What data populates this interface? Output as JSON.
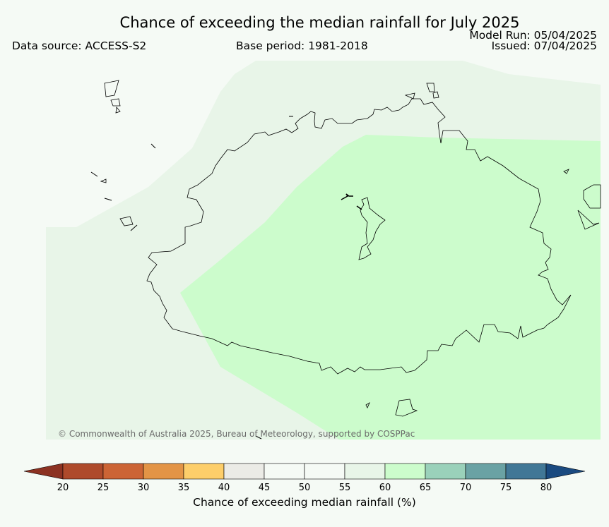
{
  "header": {
    "title": "Chance of exceeding the median rainfall for July 2025",
    "data_source": "Data source: ACCESS-S2",
    "base_period": "Base period: 1981-2018",
    "model_run": "Model Run: 05/04/2025",
    "issued": "Issued: 07/04/2025"
  },
  "map": {
    "copyright": "© Commonwealth of Australia 2025, Bureau of Meteorology, supported by COSPPac",
    "regions": [
      {
        "category": "55-60",
        "color": "#e8f5e8"
      },
      {
        "category": "60-65",
        "color": "#ccfccc"
      }
    ]
  },
  "colorbar": {
    "label": "Chance of exceeding median rainfall (%)",
    "ticks": [
      "20",
      "25",
      "30",
      "35",
      "40",
      "45",
      "50",
      "55",
      "60",
      "65",
      "70",
      "75",
      "80"
    ],
    "colors": [
      "#ae4a2b",
      "#cc6435",
      "#e39446",
      "#fdce6a",
      "#ebebe6",
      "#f5faf5",
      "#f5faf5",
      "#e8f5e8",
      "#ccfccc",
      "#9ad1ba",
      "#6aa2a4",
      "#417796"
    ],
    "under_color": "#8c3222",
    "over_color": "#1a4a80"
  }
}
